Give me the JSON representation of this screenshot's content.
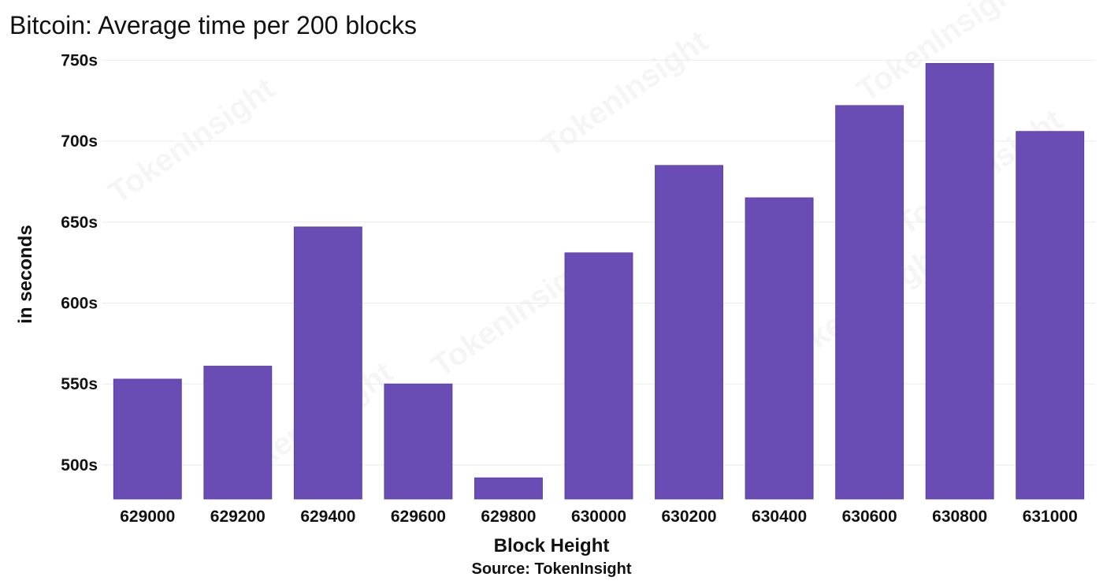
{
  "chart_data": {
    "type": "bar",
    "title": "Bitcoin: Average time per 200 blocks",
    "xlabel": "Block Height",
    "ylabel": "in seconds",
    "source": "Source: TokenInsight",
    "watermark": "TokenInsight",
    "categories": [
      "629000",
      "629200",
      "629400",
      "629600",
      "629800",
      "630000",
      "630200",
      "630400",
      "630600",
      "630800",
      "631000"
    ],
    "values": [
      553,
      561,
      647,
      550,
      492,
      631,
      685,
      665,
      722,
      748,
      706
    ],
    "yticks": [
      500,
      550,
      600,
      650,
      700,
      750
    ],
    "ytick_suffix": "s",
    "ylim": [
      479,
      758
    ],
    "grid": true,
    "bar_color": "#6a4cb5"
  }
}
